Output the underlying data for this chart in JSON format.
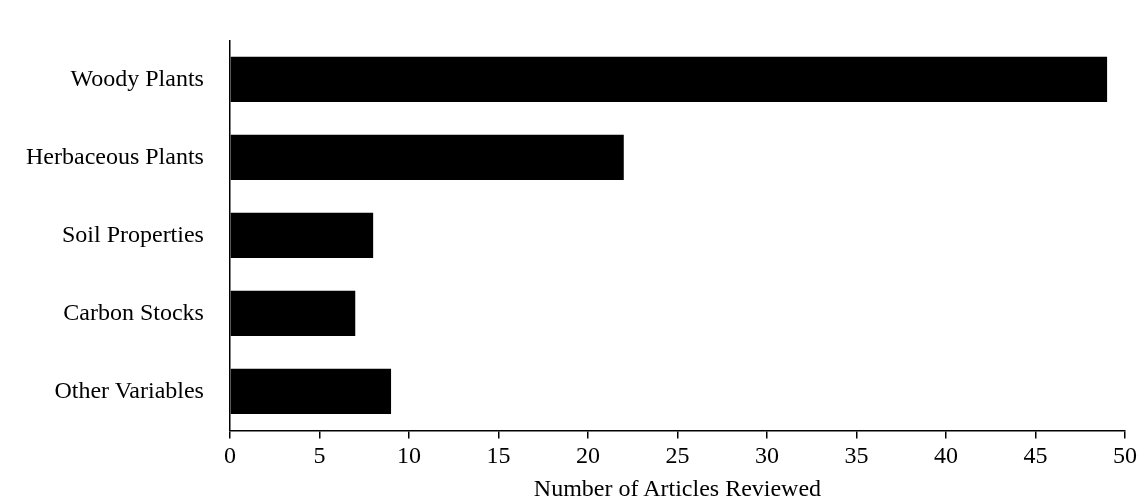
{
  "chart_data": {
    "type": "bar",
    "orientation": "horizontal",
    "xlabel": "Number of Articles Reviewed",
    "categories": [
      "Woody Plants",
      "Herbaceous Plants",
      "Soil Properties",
      "Carbon Stocks",
      "Other Variables"
    ],
    "values": [
      49,
      22,
      8,
      7,
      9
    ],
    "color": "#000000",
    "xlim": [
      0,
      50
    ],
    "xticks": [
      0,
      5,
      10,
      15,
      20,
      25,
      30,
      35,
      40,
      45,
      50
    ],
    "grid": false,
    "legend": false
  }
}
